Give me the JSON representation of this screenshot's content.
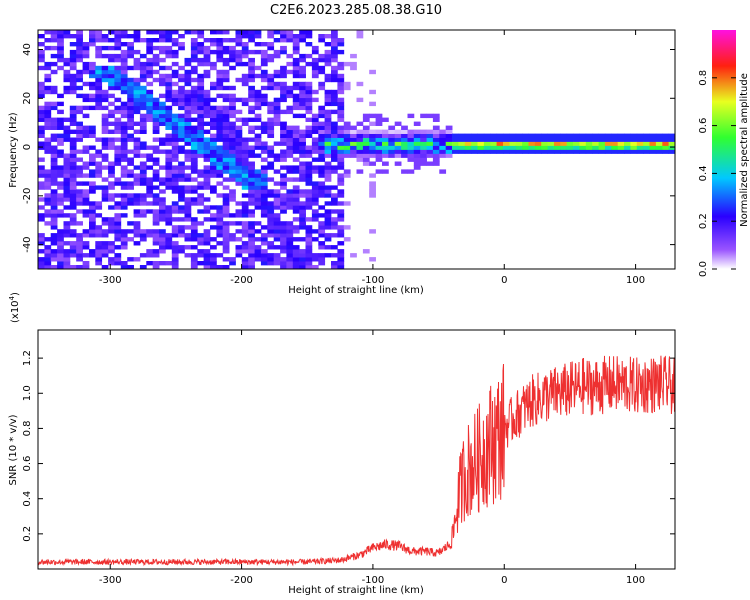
{
  "title": "C2E6.2023.285.08.38.G10",
  "colors": {
    "snr_line": "#ee3030",
    "frame": "#000000"
  },
  "chart_data": [
    {
      "type": "heatmap",
      "xlabel": "Height of straight line (km)",
      "ylabel": "Frequency (Hz)",
      "xlim": [
        -355,
        130
      ],
      "ylim": [
        -50,
        48
      ],
      "xticks": [
        -300,
        -200,
        -100,
        0,
        100
      ],
      "yticks": [
        -40,
        -20,
        0,
        20,
        40
      ],
      "colorbar": {
        "label": "Normalized spectral amplitude",
        "range": [
          0.0,
          1.0
        ],
        "ticks": [
          0.0,
          0.2,
          0.4,
          0.6,
          0.8
        ],
        "tick_labels": [
          "0.0",
          "0.2",
          "0.4",
          "0.6",
          "0.8"
        ]
      },
      "features": [
        {
          "name": "diffuse noise",
          "x_range": [
            -355,
            -120
          ],
          "freq_range": [
            -50,
            48
          ],
          "amplitude": 0.15
        },
        {
          "name": "drifting streak",
          "start": [
            -300,
            30
          ],
          "end": [
            -195,
            -13
          ],
          "amplitude": 0.3
        },
        {
          "name": "faint streak",
          "start": [
            -230,
            20
          ],
          "end": [
            -160,
            -45
          ],
          "amplitude": 0.15
        },
        {
          "name": "broad signal",
          "x_range": [
            -140,
            -40
          ],
          "freq_center": 1,
          "freq_halfwidth": 6,
          "amplitude": 0.55
        },
        {
          "name": "narrow line",
          "x_range": [
            -40,
            130
          ],
          "freq_center": 1,
          "freq_halfwidth": 2,
          "amplitude": 0.9
        }
      ]
    },
    {
      "type": "line",
      "xlabel": "Height of straight line (km)",
      "ylabel": "SNR (10 * v/v)",
      "scale_label": "(x10",
      "scale_exp": "4",
      "scale_close": ")",
      "xlim": [
        -355,
        130
      ],
      "ylim": [
        0.0,
        1.36
      ],
      "xticks": [
        -300,
        -200,
        -100,
        0,
        100
      ],
      "yticks": [
        0.2,
        0.4,
        0.6,
        0.8,
        1.0,
        1.2
      ],
      "ytick_labels": [
        "0.2",
        "0.4",
        "0.6",
        "0.8",
        "1.0",
        "1.2"
      ],
      "series": [
        {
          "name": "SNR",
          "x": [
            -355,
            -300,
            -250,
            -200,
            -150,
            -125,
            -110,
            -100,
            -90,
            -80,
            -70,
            -60,
            -50,
            -40,
            -35,
            -30,
            -25,
            -20,
            -15,
            -10,
            -5,
            0,
            10,
            20,
            30,
            40,
            50,
            60,
            70,
            80,
            90,
            100,
            110,
            120,
            130
          ],
          "y": [
            0.04,
            0.04,
            0.04,
            0.04,
            0.04,
            0.05,
            0.08,
            0.12,
            0.14,
            0.13,
            0.1,
            0.1,
            0.09,
            0.15,
            0.4,
            0.55,
            0.58,
            0.62,
            0.68,
            0.72,
            0.75,
            0.8,
            0.88,
            0.95,
            0.98,
            1.0,
            1.02,
            1.04,
            1.04,
            1.05,
            1.05,
            1.04,
            1.05,
            1.05,
            1.04
          ]
        }
      ]
    }
  ]
}
